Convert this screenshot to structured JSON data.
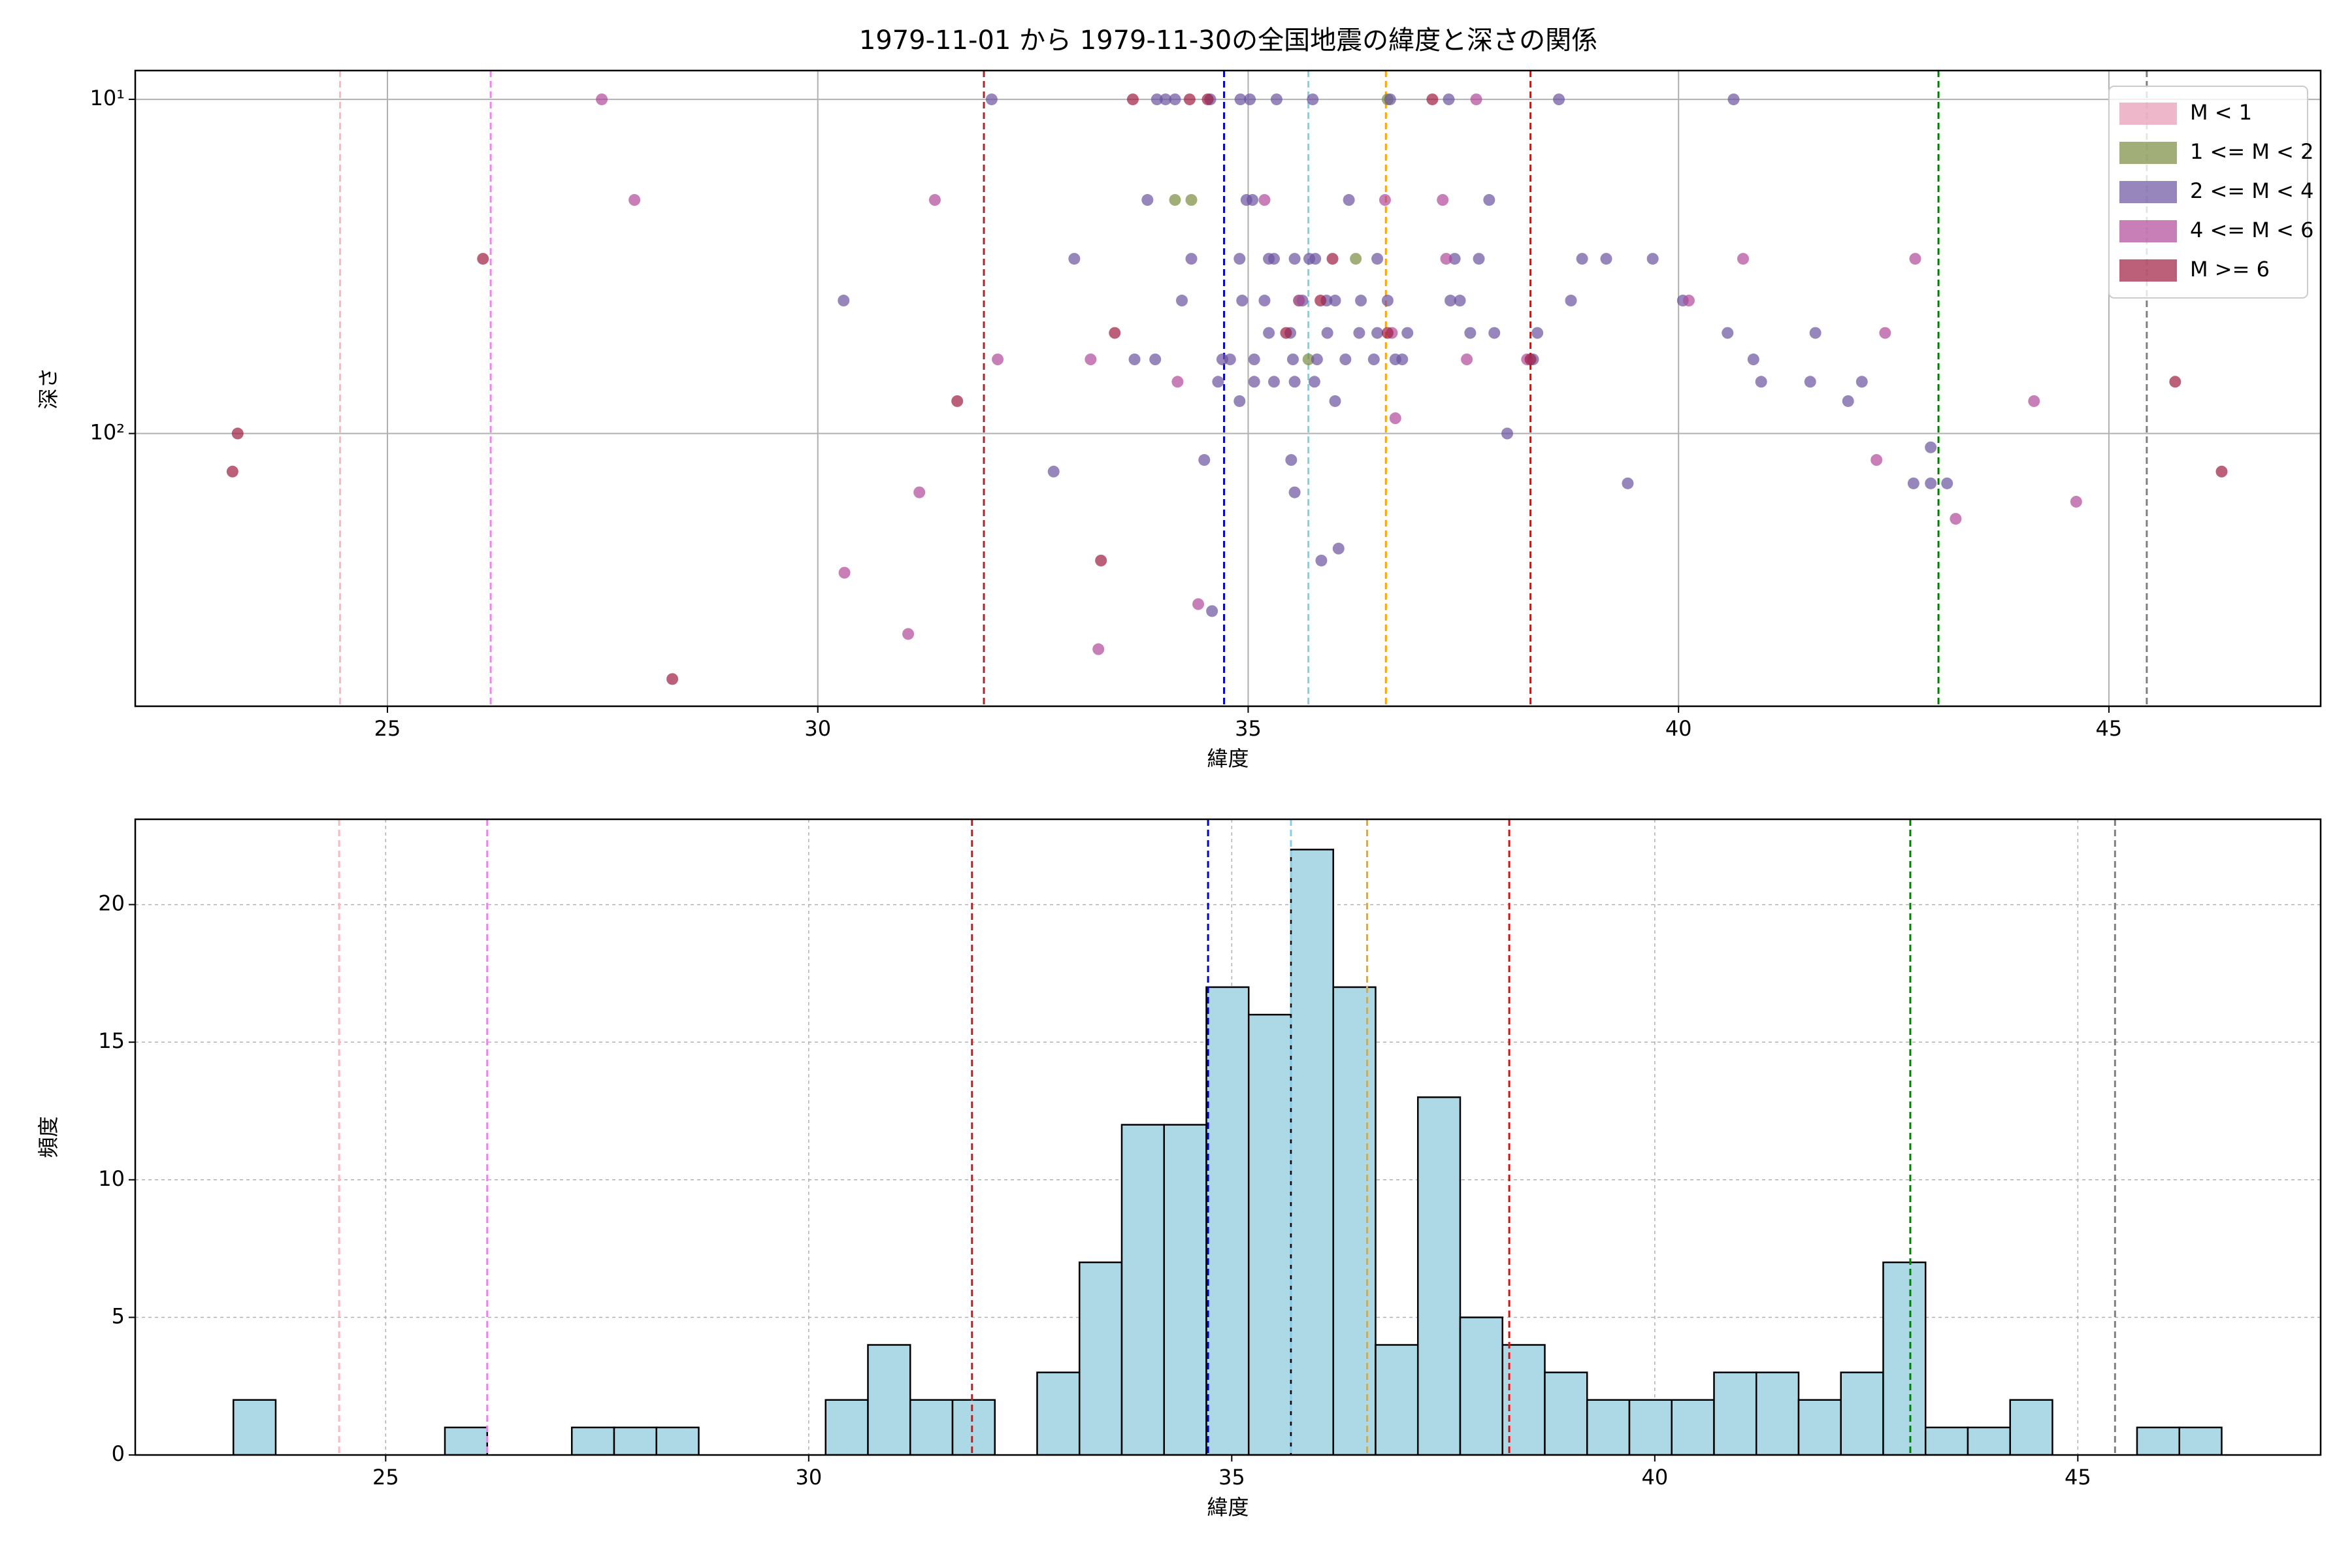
{
  "chart_data": [
    {
      "type": "scatter",
      "title": "1979-11-01 から 1979-11-30の全国地震の緯度と深さの関係",
      "xlabel": "緯度",
      "ylabel": "深さ",
      "xlim": [
        22.07,
        47.46
      ],
      "xticks": [
        25,
        30,
        35,
        40,
        45
      ],
      "ylim": [
        655,
        8.2
      ],
      "ylog": true,
      "yticks": [
        {
          "value": 10,
          "label": "10¹"
        },
        {
          "value": 100,
          "label": "10²"
        }
      ],
      "grid": true,
      "legend": "upper right",
      "vlines": [
        {
          "x": 24.45,
          "color": "#ffb6c1"
        },
        {
          "x": 26.2,
          "color": "#ee82ee"
        },
        {
          "x": 31.93,
          "color": "#a52a2a"
        },
        {
          "x": 34.72,
          "color": "#0000cd"
        },
        {
          "x": 35.7,
          "color": "#87ceeb"
        },
        {
          "x": 36.6,
          "color": "#ffa500"
        },
        {
          "x": 38.28,
          "color": "#ff0000"
        },
        {
          "x": 43.02,
          "color": "#008000"
        },
        {
          "x": 45.44,
          "color": "#808080"
        }
      ],
      "series": [
        {
          "name": "M < 1",
          "color": "#e899b4",
          "x": [],
          "values": []
        },
        {
          "name": "1 <= M < 2",
          "color": "#7b8c3e",
          "x": [
            34.15,
            34.34,
            36.62,
            35.7,
            36.25,
            35.59
          ],
          "values": [
            20,
            20,
            10,
            60,
            30,
            40
          ]
        },
        {
          "name": "2 <= M < 4",
          "color": "#6b52a0",
          "x": [
            32.02,
            33.94,
            34.04,
            34.15,
            34.56,
            34.91,
            35.02,
            35.33,
            35.75,
            36.65,
            37.33,
            38.61,
            40.64,
            33.83,
            35.05,
            34.98,
            36.17,
            37.8,
            32.98,
            34.34,
            34.9,
            35.24,
            35.3,
            35.54,
            35.71,
            35.78,
            36.5,
            37.4,
            37.68,
            38.88,
            39.16,
            39.7,
            30.3,
            34.23,
            34.93,
            35.19,
            35.63,
            35.91,
            36.01,
            36.31,
            36.62,
            37.35,
            37.46,
            38.75,
            40.05,
            35.24,
            35.49,
            35.92,
            36.29,
            36.5,
            36.85,
            37.58,
            37.86,
            38.36,
            40.57,
            41.59,
            33.68,
            33.92,
            34.7,
            34.79,
            35.07,
            35.52,
            35.8,
            36.13,
            36.46,
            36.71,
            36.79,
            38.31,
            40.87,
            34.65,
            35.07,
            35.3,
            35.54,
            35.77,
            40.96,
            41.53,
            42.13,
            34.9,
            36.01,
            41.97,
            38.01,
            42.93,
            34.49,
            35.5,
            32.74,
            39.41,
            42.73,
            42.93,
            43.12,
            35.54,
            36.05,
            35.85,
            34.58
          ],
          "values": [
            10,
            10,
            10,
            10,
            10,
            10,
            10,
            10,
            10,
            10,
            10,
            10,
            10,
            20,
            20,
            20,
            20,
            20,
            30,
            30,
            30,
            30,
            30,
            30,
            30,
            30,
            30,
            30,
            30,
            30,
            30,
            30,
            40,
            40,
            40,
            40,
            40,
            40,
            40,
            40,
            40,
            40,
            40,
            40,
            40,
            50,
            50,
            50,
            50,
            50,
            50,
            50,
            50,
            50,
            50,
            50,
            60,
            60,
            60,
            60,
            60,
            60,
            60,
            60,
            60,
            60,
            60,
            60,
            60,
            70,
            70,
            70,
            70,
            70,
            70,
            70,
            70,
            80,
            80,
            80,
            100,
            110,
            120,
            120,
            130,
            141,
            141,
            141,
            141,
            150,
            221,
            240,
            340
          ]
        },
        {
          "name": "4 <= M < 6",
          "color": "#b0489a",
          "x": [
            27.49,
            27.87,
            31.36,
            32.09,
            31.18,
            30.31,
            31.05,
            33.26,
            33.17,
            34.18,
            34.42,
            35.19,
            35.59,
            36.59,
            36.67,
            36.71,
            37.26,
            37.3,
            37.54,
            37.65,
            38.24,
            40.12,
            40.75,
            42.4,
            42.75,
            44.13,
            42.3,
            43.22,
            44.62
          ],
          "values": [
            10,
            20,
            20,
            60,
            150,
            261,
            398,
            442,
            60,
            70,
            324,
            20,
            40,
            20,
            50,
            90,
            20,
            30,
            60,
            10,
            60,
            40,
            30,
            50,
            30,
            80,
            120,
            180,
            160
          ]
        },
        {
          "name": "M >= 6",
          "color": "#a01c40",
          "x": [
            23.26,
            23.2,
            26.11,
            31.62,
            28.31,
            33.29,
            33.45,
            33.66,
            34.32,
            34.53,
            35.44,
            35.84,
            35.98,
            36.62,
            37.14,
            38.28,
            45.77,
            46.31
          ],
          "values": [
            100,
            130,
            30,
            80,
            543,
            240,
            50,
            10,
            10,
            10,
            50,
            40,
            30,
            50,
            10,
            60,
            70,
            130
          ]
        }
      ]
    },
    {
      "type": "histogram",
      "xlabel": "緯度",
      "ylabel": "頻度",
      "xlim": [
        22.04,
        47.87
      ],
      "xticks": [
        25,
        30,
        35,
        40,
        45
      ],
      "ylim": [
        0,
        23.1
      ],
      "yticks": [
        0,
        5,
        10,
        15,
        20
      ],
      "grid": true,
      "color": "#add8e6",
      "edgecolor": "#000000",
      "vlines": [
        {
          "x": 24.45,
          "color": "#ffb6c1"
        },
        {
          "x": 26.2,
          "color": "#ee82ee"
        },
        {
          "x": 31.93,
          "color": "#a52a2a"
        },
        {
          "x": 34.72,
          "color": "#0000cd"
        },
        {
          "x": 35.7,
          "color": "#87ceeb"
        },
        {
          "x": 36.6,
          "color": "#ffa500"
        },
        {
          "x": 38.28,
          "color": "#ff0000"
        },
        {
          "x": 43.02,
          "color": "#008000"
        },
        {
          "x": 45.44,
          "color": "#808080"
        }
      ],
      "bins": [
        23.2,
        23.7,
        24.2,
        24.7,
        25.2,
        25.7,
        26.2,
        26.7,
        27.2,
        27.7,
        28.2,
        28.7,
        29.2,
        29.7,
        30.2,
        30.7,
        31.2,
        31.7,
        32.2,
        32.7,
        33.2,
        33.7,
        34.2,
        34.7,
        35.2,
        35.7,
        36.2,
        36.7,
        37.2,
        37.7,
        38.2,
        38.7,
        39.2,
        39.7,
        40.2,
        40.7,
        41.2,
        41.7,
        42.2,
        42.7,
        43.2,
        43.7,
        44.2,
        44.7,
        45.2,
        45.7,
        46.2,
        46.7
      ],
      "values": [
        2,
        0,
        0,
        0,
        0,
        1,
        0,
        0,
        1,
        1,
        1,
        0,
        0,
        0,
        2,
        4,
        2,
        2,
        0,
        3,
        7,
        12,
        12,
        17,
        16,
        22,
        17,
        4,
        13,
        5,
        4,
        3,
        2,
        2,
        2,
        3,
        3,
        2,
        3,
        7,
        1,
        1,
        2,
        0,
        0,
        1,
        1
      ]
    }
  ]
}
